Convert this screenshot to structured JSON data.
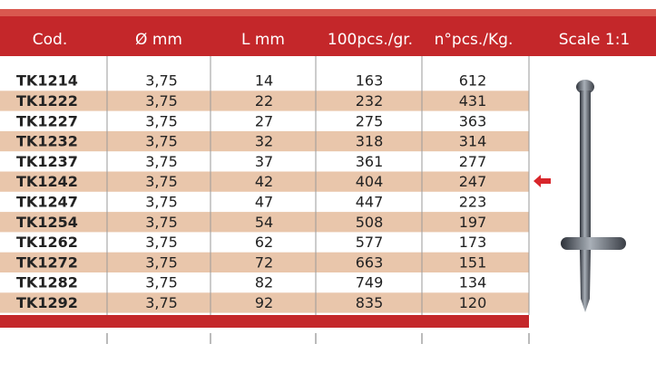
{
  "table": {
    "columns": [
      "Cod.",
      "Ø mm",
      "L mm",
      "100pcs./gr.",
      "n°pcs./Kg.",
      "Scale 1:1"
    ],
    "rows": [
      [
        "TK1214",
        "3,75",
        "14",
        "163",
        "612"
      ],
      [
        "TK1222",
        "3,75",
        "22",
        "232",
        "431"
      ],
      [
        "TK1227",
        "3,75",
        "27",
        "275",
        "363"
      ],
      [
        "TK1232",
        "3,75",
        "32",
        "318",
        "314"
      ],
      [
        "TK1237",
        "3,75",
        "37",
        "361",
        "277"
      ],
      [
        "TK1242",
        "3,75",
        "42",
        "404",
        "247"
      ],
      [
        "TK1247",
        "3,75",
        "47",
        "447",
        "223"
      ],
      [
        "TK1254",
        "3,75",
        "54",
        "508",
        "197"
      ],
      [
        "TK1262",
        "3,75",
        "62",
        "577",
        "173"
      ],
      [
        "TK1272",
        "3,75",
        "72",
        "663",
        "151"
      ],
      [
        "TK1282",
        "3,75",
        "82",
        "749",
        "134"
      ],
      [
        "TK1292",
        "3,75",
        "92",
        "835",
        "120"
      ]
    ]
  }
}
